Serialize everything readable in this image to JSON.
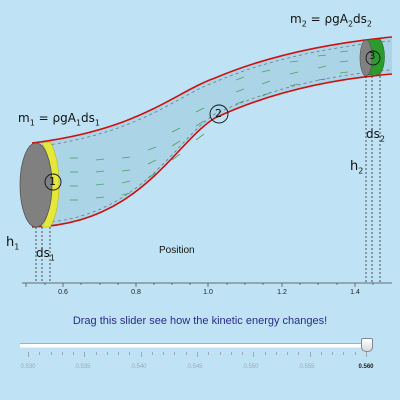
{
  "labels": {
    "mass_left_prefix": "m",
    "mass_left_sub": "1",
    "mass_left_eq": " = ρgA",
    "mass_left_sub2": "1",
    "mass_left_tail": "ds",
    "mass_left_sub3": "1",
    "mass_right_prefix": "m",
    "mass_right_sub": "2",
    "mass_right_eq": " = ρgA",
    "mass_right_sub2": "2",
    "mass_right_tail": "ds",
    "mass_right_sub3": "2",
    "h1": "h",
    "h1_sub": "1",
    "h2": "h",
    "h2_sub": "2",
    "ds1": "ds",
    "ds1_sub": "1",
    "ds2": "ds",
    "ds2_sub": "2",
    "region_1": "1",
    "region_2": "2",
    "region_3": "3",
    "axis_title": "Position"
  },
  "axis": {
    "ticks": [
      "0.6",
      "0.8",
      "1.0",
      "1.2",
      "1.4"
    ]
  },
  "instruction": "Drag this slider see how the kinetic energy changes!",
  "slider": {
    "tick_labels": [
      "0.530",
      "0.535",
      "0.540",
      "0.545",
      "0.550",
      "0.555",
      "0.560"
    ],
    "value_label": "0.560",
    "value": 0.56,
    "min": 0.53,
    "max": 0.56
  },
  "colors": {
    "background": "#bfe3f4",
    "pipe_fill": "#a9d2e6",
    "pipe_wall": "#cc1111",
    "left_cap": "#808080",
    "left_slice": "#e4e83a",
    "right_slice": "#2d9a2d",
    "streamline": "#3a9a4a"
  }
}
